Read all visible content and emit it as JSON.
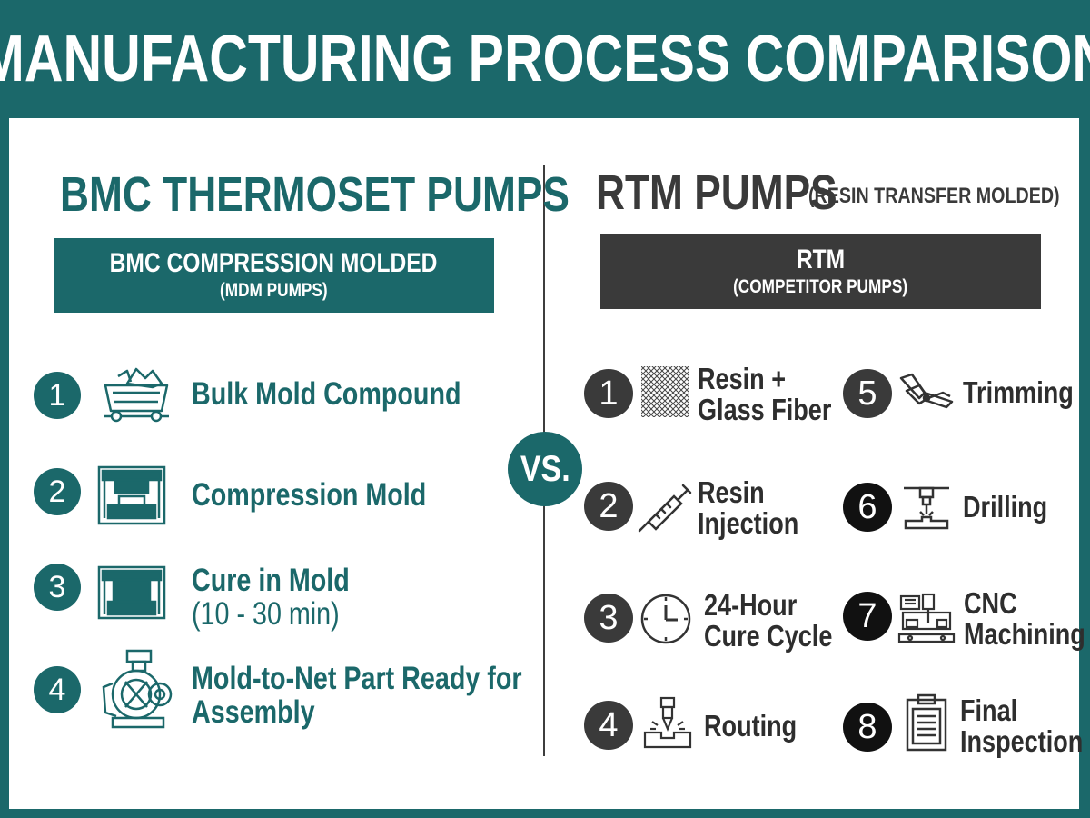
{
  "title": "MANUFACTURING PROCESS COMPARISON",
  "vs_label": "VS.",
  "left": {
    "title": "BMC THERMOSET PUMPS",
    "box_line1": "BMC COMPRESSION MOLDED",
    "box_line2": "(MDM PUMPS)",
    "steps": [
      {
        "num": "1",
        "icon": "mine-cart-icon",
        "text": "Bulk Mold Compound",
        "sub": ""
      },
      {
        "num": "2",
        "icon": "compression-mold-icon",
        "text": "Compression Mold",
        "sub": ""
      },
      {
        "num": "3",
        "icon": "cure-mold-icon",
        "text": "Cure in Mold",
        "sub": "(10 - 30 min)"
      },
      {
        "num": "4",
        "icon": "pump-icon",
        "text": "Mold-to-Net Part Ready for",
        "sub": "Assembly"
      }
    ]
  },
  "right": {
    "title": "RTM PUMPS",
    "subtitle": "(RESIN TRANSFER MOLDED)",
    "box_line1": "RTM",
    "box_line2": "(COMPETITOR PUMPS)",
    "steps": [
      {
        "num": "1",
        "icon": "glass-fiber-mesh-icon",
        "line1": "Resin +",
        "line2": "Glass Fiber"
      },
      {
        "num": "2",
        "icon": "syringe-icon",
        "line1": "Resin",
        "line2": "Injection"
      },
      {
        "num": "3",
        "icon": "clock-icon",
        "line1": "24-Hour",
        "line2": "Cure Cycle"
      },
      {
        "num": "4",
        "icon": "router-bit-icon",
        "line1": "Routing",
        "line2": ""
      },
      {
        "num": "5",
        "icon": "trimming-shears-icon",
        "line1": "Trimming",
        "line2": ""
      },
      {
        "num": "6",
        "icon": "drill-press-icon",
        "line1": "Drilling",
        "line2": ""
      },
      {
        "num": "7",
        "icon": "cnc-machine-icon",
        "line1": "CNC",
        "line2": "Machining"
      },
      {
        "num": "8",
        "icon": "clipboard-icon",
        "line1": "Final",
        "line2": "Inspection"
      }
    ]
  },
  "colors": {
    "teal": "#1b686a",
    "dark": "#3a3a3a",
    "black": "#111111",
    "white": "#ffffff"
  }
}
